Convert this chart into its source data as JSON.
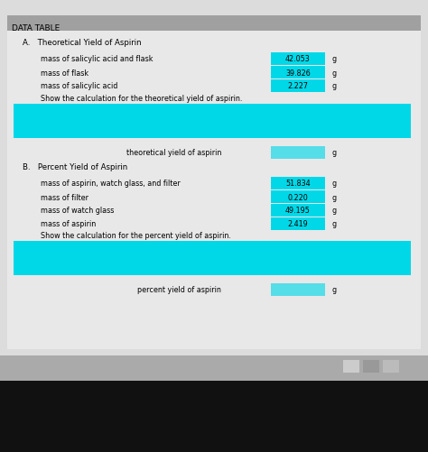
{
  "title": "DATA TABLE",
  "bg_color": "#c8c8c8",
  "content_bg": "#e8e8e8",
  "header_bg": "#a8a8a8",
  "cyan": "#00d8e8",
  "cyan_answer": "#55dde8",
  "black_bar": "#1a1a1a",
  "taskbar_bg": "#888888",
  "section_A_title": "A.   Theoretical Yield of Aspirin",
  "section_B_title": "B.   Percent Yield of Aspirin",
  "section_A_rows": [
    {
      "label": "mass of salicylic acid and flask",
      "value": "42.053",
      "unit": "g"
    },
    {
      "label": "mass of flask",
      "value": "39.826",
      "unit": "g"
    },
    {
      "label": "mass of salicylic acid",
      "value": "2.227",
      "unit": "g"
    }
  ],
  "section_A_calc_label": "Show the calculation for the theoretical yield of aspirin.",
  "section_A_result_label": "theoretical yield of aspirin",
  "section_B_rows": [
    {
      "label": "mass of aspirin, watch glass, and filter",
      "value": "51.834",
      "unit": "g"
    },
    {
      "label": "mass of filter",
      "value": "0.220",
      "unit": "g"
    },
    {
      "label": "mass of watch glass",
      "value": "49.195",
      "unit": "g"
    },
    {
      "label": "mass of aspirin",
      "value": "2.419",
      "unit": "g"
    }
  ],
  "section_B_calc_label": "Show the calculation for the percent yield of aspirin.",
  "section_B_result_label": "percent yield of aspirin",
  "font_size_title": 6.5,
  "font_size_body": 5.8,
  "font_size_section": 6.2
}
